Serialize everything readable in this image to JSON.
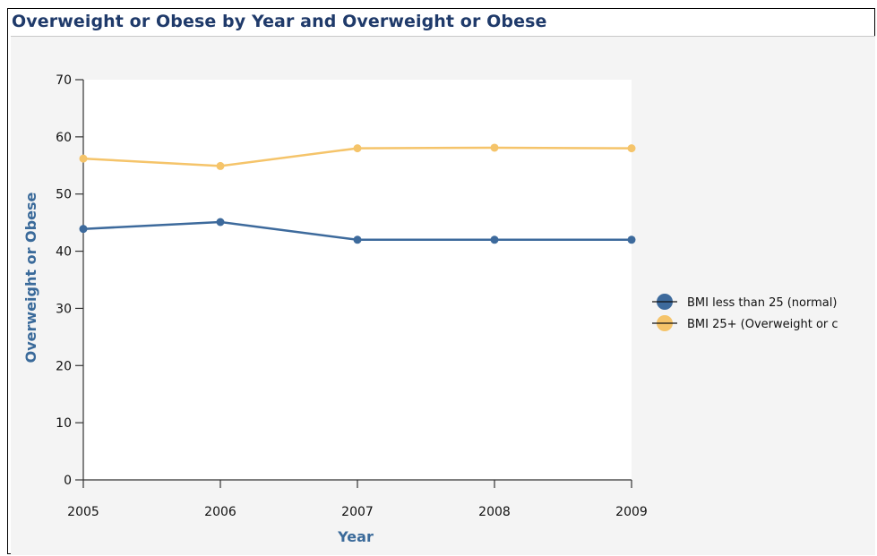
{
  "title": "Overweight or Obese by Year and Overweight or Obese",
  "chart_data": {
    "type": "line",
    "title": "Overweight or Obese by Year and Overweight or Obese",
    "xlabel": "Year",
    "ylabel": "Overweight or Obese",
    "categories": [
      "2005",
      "2006",
      "2007",
      "2008",
      "2009"
    ],
    "yticks": [
      "0",
      "10",
      "20",
      "30",
      "40",
      "50",
      "60",
      "70"
    ],
    "ylim": [
      0,
      70
    ],
    "grid": false,
    "legend_position": "right",
    "series": [
      {
        "name": "BMI less than 25 (normal)",
        "color": "#3d6a9c",
        "values": [
          43.9,
          45.1,
          42.0,
          42.0,
          42.0
        ]
      },
      {
        "name": "BMI 25+ (Overweight or c",
        "color": "#f5c46a",
        "values": [
          56.2,
          54.9,
          58.0,
          58.1,
          58.0
        ]
      }
    ]
  }
}
